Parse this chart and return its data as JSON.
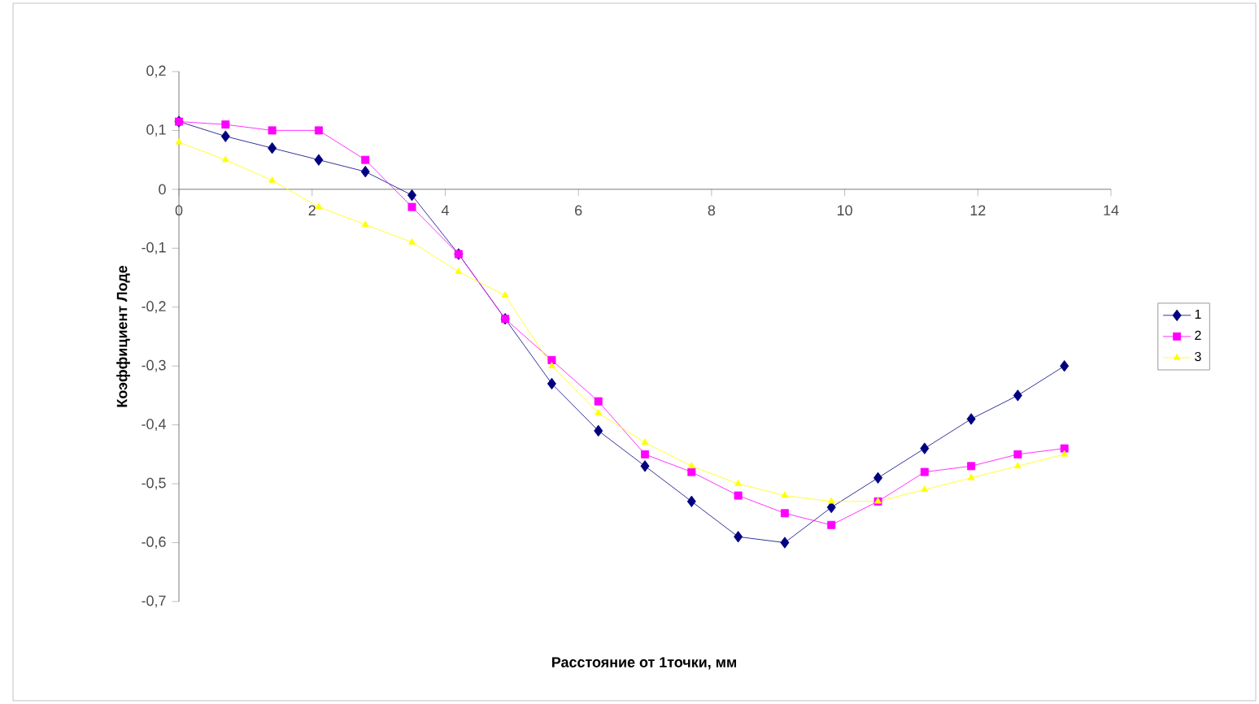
{
  "chart_data": {
    "type": "line",
    "xlabel": "Расстояние от 1точки, мм",
    "ylabel": "Коэффициент Лоде",
    "xlim": [
      0,
      14
    ],
    "xticks": [
      0,
      2,
      4,
      6,
      8,
      10,
      12,
      14
    ],
    "ylim": [
      -0.7,
      0.2
    ],
    "yticks": [
      {
        "value": 0.2,
        "label": "0,2"
      },
      {
        "value": 0.1,
        "label": "0,1"
      },
      0,
      {
        "value": -0.1,
        "label": "-0,1"
      },
      {
        "value": -0.2,
        "label": "-0,2"
      },
      {
        "value": -0.3,
        "label": "-0,3"
      },
      {
        "value": -0.4,
        "label": "-0,4"
      },
      {
        "value": -0.5,
        "label": "-0,5"
      },
      {
        "value": -0.6,
        "label": "-0,6"
      },
      {
        "value": -0.7,
        "label": "-0,7"
      }
    ],
    "x": [
      0,
      0.7,
      1.4,
      2.1,
      2.8,
      3.5,
      4.2,
      4.9,
      5.6,
      6.3,
      7.0,
      7.7,
      8.4,
      9.1,
      9.8,
      10.5,
      11.2,
      11.9,
      12.6,
      13.3
    ],
    "series": [
      {
        "name": "1",
        "color": "#000080",
        "marker": "diamond",
        "values": [
          0.115,
          0.09,
          0.07,
          0.05,
          0.03,
          -0.01,
          -0.11,
          -0.22,
          -0.33,
          -0.41,
          -0.47,
          -0.53,
          -0.59,
          -0.6,
          -0.54,
          -0.49,
          -0.44,
          -0.39,
          -0.35,
          -0.3
        ]
      },
      {
        "name": "2",
        "color": "#ff00ff",
        "marker": "square",
        "values": [
          0.115,
          0.11,
          0.1,
          0.1,
          0.05,
          -0.03,
          -0.11,
          -0.22,
          -0.29,
          -0.36,
          -0.45,
          -0.48,
          -0.52,
          -0.55,
          -0.57,
          -0.53,
          -0.48,
          -0.47,
          -0.45,
          -0.44
        ]
      },
      {
        "name": "3",
        "color": "#ffff00",
        "marker": "triangle",
        "values": [
          0.08,
          0.05,
          0.015,
          -0.03,
          -0.06,
          -0.09,
          -0.14,
          -0.18,
          -0.3,
          -0.38,
          -0.43,
          -0.47,
          -0.5,
          -0.52,
          -0.53,
          -0.53,
          -0.51,
          -0.49,
          -0.47,
          -0.45
        ]
      }
    ],
    "legend": "right",
    "grid": false
  }
}
